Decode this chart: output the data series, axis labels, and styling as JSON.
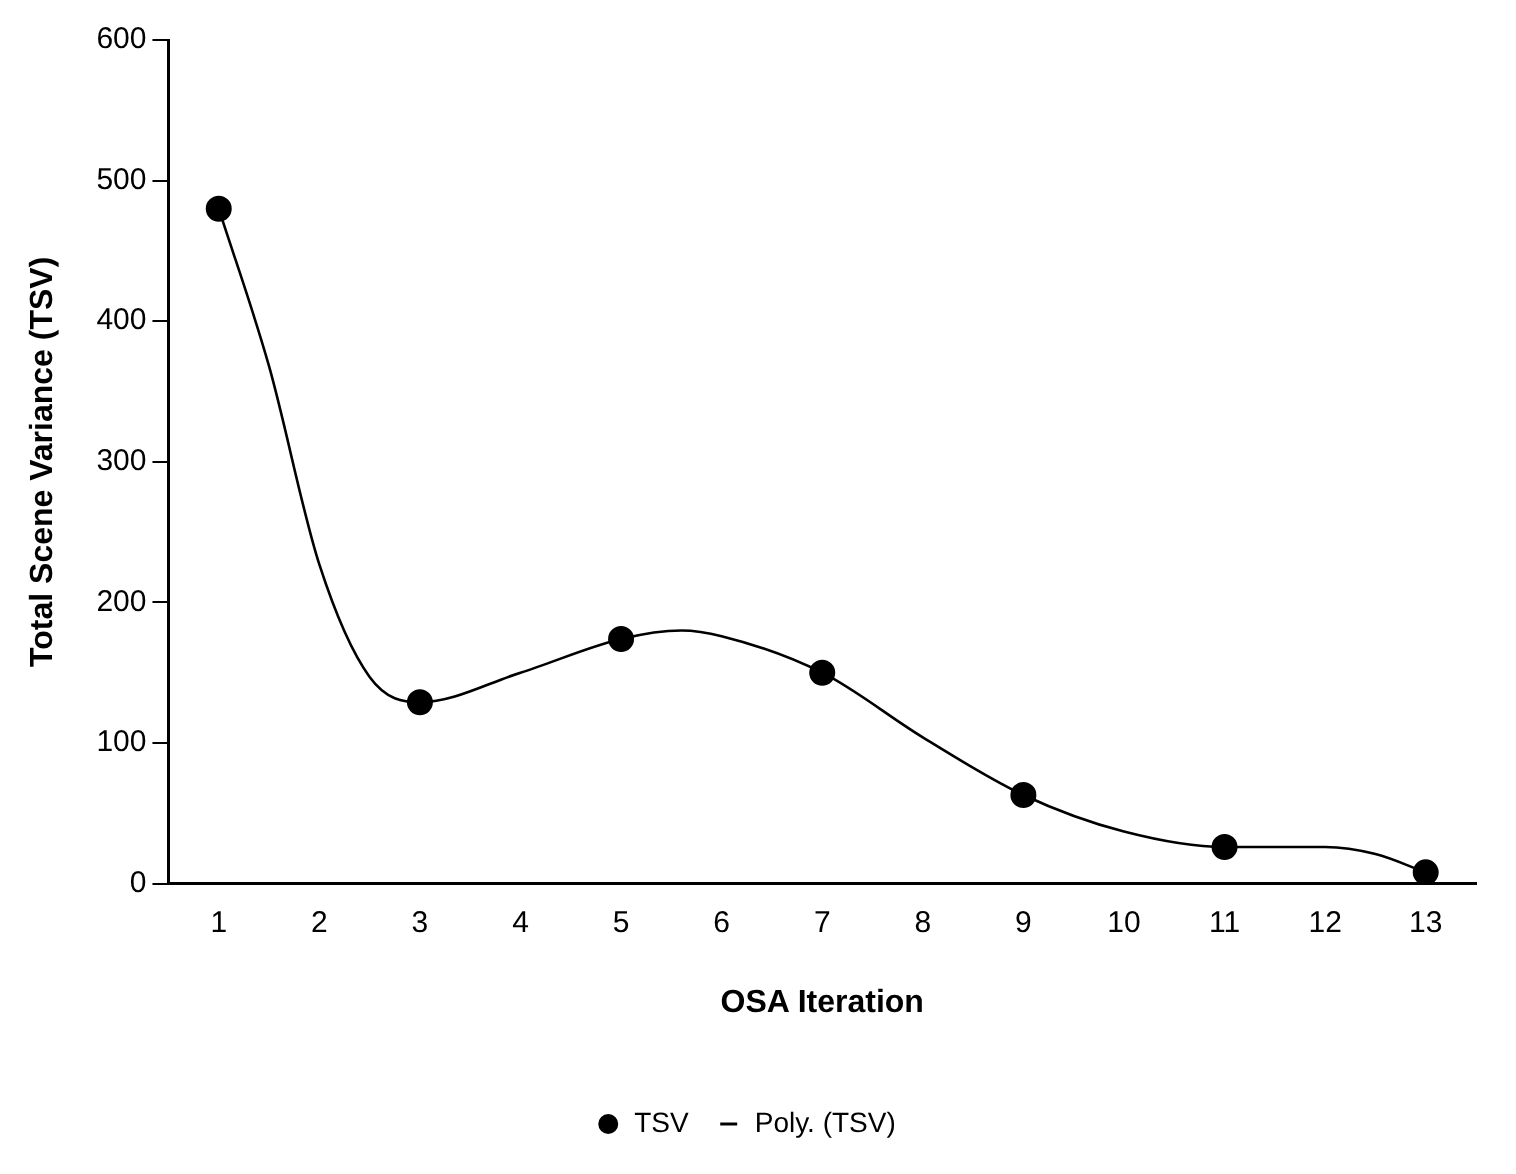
{
  "chart_data": {
    "type": "scatter",
    "xlabel": "OSA Iteration",
    "ylabel": "Total Scene Variance (TSV)",
    "xlim": [
      0.5,
      13.5
    ],
    "xticks": [
      1,
      2,
      3,
      4,
      5,
      6,
      7,
      8,
      9,
      10,
      11,
      12,
      13
    ],
    "ylim": [
      0,
      600
    ],
    "yticks": [
      0,
      100,
      200,
      300,
      400,
      500,
      600
    ],
    "grid": false,
    "legend": "bottom",
    "series": [
      {
        "name": "TSV",
        "type": "scatter",
        "color": "#000000",
        "marker": "circle",
        "x": [
          1,
          3,
          5,
          7,
          9,
          11,
          13
        ],
        "values": [
          480,
          129,
          174,
          150,
          63,
          26,
          8
        ]
      },
      {
        "name": "Poly. (TSV)",
        "type": "line",
        "color": "#000000",
        "marker": "none",
        "line_style": "solid",
        "x": [
          1,
          1.5,
          2,
          2.5,
          3,
          4,
          5,
          5.6,
          6,
          7,
          8,
          9,
          10,
          11,
          12,
          12.5,
          13
        ],
        "values": [
          480,
          368,
          227,
          147,
          129,
          150,
          174,
          180,
          176,
          150,
          104,
          63,
          37,
          26,
          26,
          21,
          8
        ]
      }
    ]
  }
}
